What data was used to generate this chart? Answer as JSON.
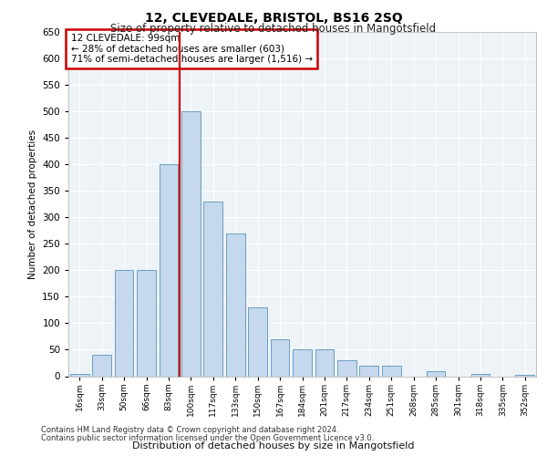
{
  "title1": "12, CLEVEDALE, BRISTOL, BS16 2SQ",
  "title2": "Size of property relative to detached houses in Mangotsfield",
  "xlabel": "Distribution of detached houses by size in Mangotsfield",
  "ylabel": "Number of detached properties",
  "categories": [
    "16sqm",
    "33sqm",
    "50sqm",
    "66sqm",
    "83sqm",
    "100sqm",
    "117sqm",
    "133sqm",
    "150sqm",
    "167sqm",
    "184sqm",
    "201sqm",
    "217sqm",
    "234sqm",
    "251sqm",
    "268sqm",
    "285sqm",
    "301sqm",
    "318sqm",
    "335sqm",
    "352sqm"
  ],
  "values": [
    5,
    40,
    200,
    200,
    400,
    500,
    330,
    270,
    130,
    70,
    50,
    50,
    30,
    20,
    20,
    0,
    10,
    0,
    5,
    0,
    3
  ],
  "bar_color": "#c5d8ed",
  "bar_edge_color": "#6a9fc0",
  "annotation_box_text": "12 CLEVEDALE: 99sqm\n← 28% of detached houses are smaller (603)\n71% of semi-detached houses are larger (1,516) →",
  "annotation_box_color": "#ffffff",
  "annotation_box_edge": "#cc0000",
  "vline_color": "#cc0000",
  "vline_x_index": 5,
  "ylim": [
    0,
    650
  ],
  "yticks": [
    0,
    50,
    100,
    150,
    200,
    250,
    300,
    350,
    400,
    450,
    500,
    550,
    600,
    650
  ],
  "background_color": "#eef3f8",
  "grid_color": "#ffffff",
  "footer1": "Contains HM Land Registry data © Crown copyright and database right 2024.",
  "footer2": "Contains public sector information licensed under the Open Government Licence v3.0."
}
